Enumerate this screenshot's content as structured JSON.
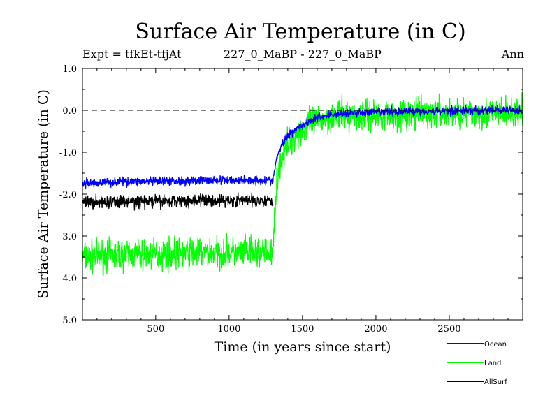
{
  "header": {
    "title": "Surface Air Temperature (in C)",
    "experiment": "Expt = tfkEt-tfjAt",
    "runs": "227_0_MaBP - 227_0_MaBP",
    "period": "Ann"
  },
  "chart_data": {
    "type": "line",
    "title": "Surface Air Temperature (in C)",
    "xlabel": "Time (in years since start)",
    "ylabel": "Surface Air Temperature (in C)",
    "xlim": [
      1,
      3000
    ],
    "ylim": [
      -5.0,
      1.0
    ],
    "x_ticks": [
      500,
      1000,
      1500,
      2000,
      2500
    ],
    "x_tick_labels": [
      "500",
      "1000",
      "1500",
      "2000",
      "2500"
    ],
    "y_ticks": [
      -5.0,
      -4.0,
      -3.0,
      -2.0,
      -1.0,
      0.0,
      1.0
    ],
    "y_tick_labels": [
      "-5.0",
      "-4.0",
      "-3.0",
      "-2.0",
      "-1.0",
      "0.0",
      "1.0"
    ],
    "reference_line": {
      "y": 0.0,
      "style": "dashed"
    },
    "grid": false,
    "legend_position": "bottom-right, outside plot",
    "series": [
      {
        "name": "Ocean",
        "color": "#0000ff",
        "x": [
          1,
          250,
          500,
          750,
          1000,
          1250,
          1300,
          1320,
          1350,
          1400,
          1450,
          1500,
          1550,
          1600,
          1700,
          1800,
          2000,
          2250,
          2500,
          2750,
          3000
        ],
        "values": [
          -1.75,
          -1.7,
          -1.7,
          -1.68,
          -1.67,
          -1.67,
          -1.67,
          -1.2,
          -0.9,
          -0.6,
          -0.45,
          -0.35,
          -0.25,
          -0.17,
          -0.1,
          -0.07,
          -0.04,
          -0.02,
          -0.01,
          0.0,
          0.0
        ],
        "noise_amplitude": 0.09
      },
      {
        "name": "Land",
        "color": "#00ff00",
        "x": [
          1,
          250,
          500,
          750,
          1000,
          1250,
          1300,
          1320,
          1350,
          1400,
          1450,
          1500,
          1550,
          1600,
          1700,
          1800,
          2000,
          2250,
          2500,
          2750,
          3000
        ],
        "values": [
          -3.5,
          -3.45,
          -3.45,
          -3.4,
          -3.4,
          -3.4,
          -3.4,
          -1.8,
          -1.2,
          -0.8,
          -0.6,
          -0.45,
          -0.35,
          -0.25,
          -0.15,
          -0.12,
          -0.1,
          -0.1,
          -0.08,
          -0.08,
          -0.08
        ],
        "noise_amplitude": 0.32
      },
      {
        "name": "AllSurf",
        "color": "#000000",
        "x": [
          1,
          250,
          500,
          750,
          1000,
          1250,
          1300
        ],
        "values": [
          -2.2,
          -2.18,
          -2.17,
          -2.15,
          -2.15,
          -2.15,
          -2.15
        ],
        "noise_amplitude": 0.13
      }
    ]
  }
}
